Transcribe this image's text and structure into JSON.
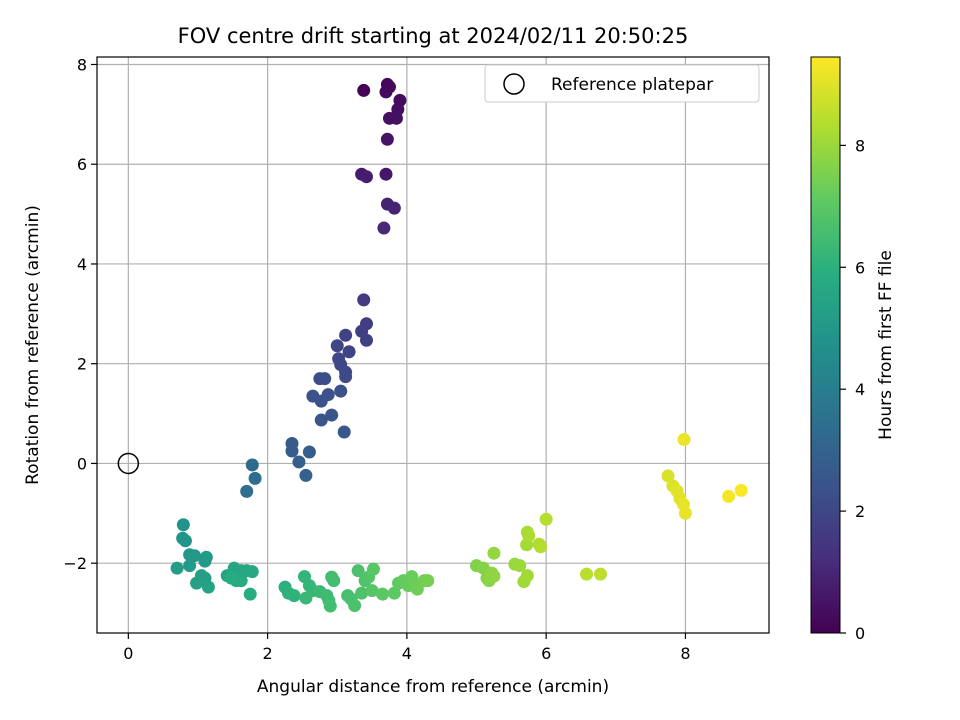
{
  "chart_data": {
    "type": "scatter",
    "title": "FOV centre drift starting at 2024/02/11 20:50:25",
    "xlabel": "Angular distance from reference (arcmin)",
    "ylabel": "Rotation from reference (arcmin)",
    "xlim": [
      -0.45,
      9.2
    ],
    "ylim": [
      -3.4,
      8.15
    ],
    "xticks": [
      0,
      2,
      4,
      6,
      8
    ],
    "yticks": [
      -2,
      0,
      2,
      4,
      6,
      8
    ],
    "xtick_labels": [
      "0",
      "2",
      "4",
      "6",
      "8"
    ],
    "ytick_labels": [
      "−2",
      "0",
      "2",
      "4",
      "6",
      "8"
    ],
    "grid": true,
    "legend": {
      "position": "top-right",
      "entries": [
        "Reference platepar"
      ]
    },
    "reference_point": {
      "label": "Reference platepar",
      "x": 0,
      "y": 0
    },
    "colorbar": {
      "label": "Hours from first FF file",
      "colormap": "viridis",
      "range": [
        0,
        9.45
      ],
      "ticks": [
        0,
        2,
        4,
        6,
        8
      ],
      "tick_labels": [
        "0",
        "2",
        "4",
        "6",
        "8"
      ]
    },
    "points": [
      {
        "x": 3.38,
        "y": 7.48,
        "c": 0.1
      },
      {
        "x": 3.72,
        "y": 7.6,
        "c": 0.15
      },
      {
        "x": 3.75,
        "y": 7.55,
        "c": 0.2
      },
      {
        "x": 3.7,
        "y": 7.45,
        "c": 0.25
      },
      {
        "x": 3.9,
        "y": 7.28,
        "c": 0.3
      },
      {
        "x": 3.87,
        "y": 7.1,
        "c": 0.35
      },
      {
        "x": 3.75,
        "y": 6.92,
        "c": 0.4
      },
      {
        "x": 3.85,
        "y": 6.92,
        "c": 0.45
      },
      {
        "x": 3.72,
        "y": 6.5,
        "c": 0.5
      },
      {
        "x": 3.7,
        "y": 5.8,
        "c": 0.6
      },
      {
        "x": 3.35,
        "y": 5.8,
        "c": 0.7
      },
      {
        "x": 3.42,
        "y": 5.75,
        "c": 0.75
      },
      {
        "x": 3.72,
        "y": 5.2,
        "c": 0.9
      },
      {
        "x": 3.82,
        "y": 5.12,
        "c": 0.95
      },
      {
        "x": 3.67,
        "y": 4.72,
        "c": 1.05
      },
      {
        "x": 3.38,
        "y": 3.28,
        "c": 1.6
      },
      {
        "x": 3.42,
        "y": 2.8,
        "c": 1.7
      },
      {
        "x": 3.35,
        "y": 2.65,
        "c": 1.75
      },
      {
        "x": 3.42,
        "y": 2.47,
        "c": 1.8
      },
      {
        "x": 3.12,
        "y": 2.57,
        "c": 1.85
      },
      {
        "x": 3.17,
        "y": 2.24,
        "c": 1.9
      },
      {
        "x": 3.0,
        "y": 2.36,
        "c": 1.95
      },
      {
        "x": 3.02,
        "y": 2.1,
        "c": 2.0
      },
      {
        "x": 3.05,
        "y": 1.98,
        "c": 2.05
      },
      {
        "x": 3.12,
        "y": 1.83,
        "c": 2.1
      },
      {
        "x": 3.12,
        "y": 1.74,
        "c": 2.15
      },
      {
        "x": 2.75,
        "y": 1.7,
        "c": 2.2
      },
      {
        "x": 2.82,
        "y": 1.7,
        "c": 2.25
      },
      {
        "x": 3.05,
        "y": 1.45,
        "c": 2.3
      },
      {
        "x": 2.87,
        "y": 1.38,
        "c": 2.35
      },
      {
        "x": 2.65,
        "y": 1.35,
        "c": 2.4
      },
      {
        "x": 2.77,
        "y": 1.25,
        "c": 2.45
      },
      {
        "x": 2.92,
        "y": 0.97,
        "c": 2.5
      },
      {
        "x": 2.77,
        "y": 0.87,
        "c": 2.55
      },
      {
        "x": 3.1,
        "y": 0.63,
        "c": 2.6
      },
      {
        "x": 2.35,
        "y": 0.4,
        "c": 2.7
      },
      {
        "x": 2.35,
        "y": 0.25,
        "c": 2.75
      },
      {
        "x": 2.6,
        "y": 0.23,
        "c": 2.8
      },
      {
        "x": 2.45,
        "y": 0.03,
        "c": 2.85
      },
      {
        "x": 2.55,
        "y": -0.24,
        "c": 2.95
      },
      {
        "x": 1.78,
        "y": -0.03,
        "c": 3.3
      },
      {
        "x": 1.82,
        "y": -0.3,
        "c": 3.35
      },
      {
        "x": 1.7,
        "y": -0.56,
        "c": 3.4
      },
      {
        "x": 0.79,
        "y": -1.23,
        "c": 4.8
      },
      {
        "x": 0.78,
        "y": -1.5,
        "c": 4.85
      },
      {
        "x": 0.82,
        "y": -1.55,
        "c": 4.9
      },
      {
        "x": 0.88,
        "y": -1.83,
        "c": 4.95
      },
      {
        "x": 0.95,
        "y": -1.85,
        "c": 5.0
      },
      {
        "x": 1.12,
        "y": -1.88,
        "c": 5.05
      },
      {
        "x": 1.1,
        "y": -1.96,
        "c": 5.1
      },
      {
        "x": 0.88,
        "y": -2.05,
        "c": 5.15
      },
      {
        "x": 0.7,
        "y": -2.1,
        "c": 5.2
      },
      {
        "x": 1.05,
        "y": -2.25,
        "c": 5.25
      },
      {
        "x": 1.1,
        "y": -2.3,
        "c": 5.3
      },
      {
        "x": 0.98,
        "y": -2.4,
        "c": 5.35
      },
      {
        "x": 1.15,
        "y": -2.48,
        "c": 5.4
      },
      {
        "x": 1.42,
        "y": -2.25,
        "c": 5.45
      },
      {
        "x": 1.52,
        "y": -2.1,
        "c": 5.5
      },
      {
        "x": 1.62,
        "y": -2.15,
        "c": 5.55
      },
      {
        "x": 1.7,
        "y": -2.15,
        "c": 5.6
      },
      {
        "x": 1.78,
        "y": -2.17,
        "c": 5.65
      },
      {
        "x": 1.55,
        "y": -2.35,
        "c": 5.7
      },
      {
        "x": 1.62,
        "y": -2.35,
        "c": 5.75
      },
      {
        "x": 1.48,
        "y": -2.3,
        "c": 5.8
      },
      {
        "x": 1.75,
        "y": -2.62,
        "c": 5.85
      },
      {
        "x": 2.25,
        "y": -2.48,
        "c": 6.0
      },
      {
        "x": 2.3,
        "y": -2.6,
        "c": 6.05
      },
      {
        "x": 2.38,
        "y": -2.65,
        "c": 6.1
      },
      {
        "x": 2.53,
        "y": -2.27,
        "c": 6.15
      },
      {
        "x": 2.6,
        "y": -2.45,
        "c": 6.2
      },
      {
        "x": 2.65,
        "y": -2.55,
        "c": 6.25
      },
      {
        "x": 2.55,
        "y": -2.7,
        "c": 6.3
      },
      {
        "x": 2.75,
        "y": -2.57,
        "c": 6.35
      },
      {
        "x": 2.85,
        "y": -2.65,
        "c": 6.4
      },
      {
        "x": 2.88,
        "y": -2.75,
        "c": 6.45
      },
      {
        "x": 2.92,
        "y": -2.28,
        "c": 6.5
      },
      {
        "x": 2.95,
        "y": -2.35,
        "c": 6.55
      },
      {
        "x": 2.9,
        "y": -2.86,
        "c": 6.55
      },
      {
        "x": 3.15,
        "y": -2.65,
        "c": 6.6
      },
      {
        "x": 3.2,
        "y": -2.72,
        "c": 6.65
      },
      {
        "x": 3.25,
        "y": -2.85,
        "c": 6.7
      },
      {
        "x": 3.3,
        "y": -2.15,
        "c": 6.7
      },
      {
        "x": 3.35,
        "y": -2.6,
        "c": 6.75
      },
      {
        "x": 3.4,
        "y": -2.35,
        "c": 6.8
      },
      {
        "x": 3.45,
        "y": -2.28,
        "c": 6.85
      },
      {
        "x": 3.5,
        "y": -2.55,
        "c": 6.9
      },
      {
        "x": 3.52,
        "y": -2.12,
        "c": 6.95
      },
      {
        "x": 3.65,
        "y": -2.62,
        "c": 7.0
      },
      {
        "x": 3.82,
        "y": -2.6,
        "c": 7.05
      },
      {
        "x": 3.88,
        "y": -2.4,
        "c": 7.1
      },
      {
        "x": 3.95,
        "y": -2.35,
        "c": 7.15
      },
      {
        "x": 4.02,
        "y": -2.45,
        "c": 7.2
      },
      {
        "x": 4.07,
        "y": -2.27,
        "c": 7.25
      },
      {
        "x": 4.12,
        "y": -2.4,
        "c": 7.3
      },
      {
        "x": 4.15,
        "y": -2.52,
        "c": 7.35
      },
      {
        "x": 4.25,
        "y": -2.35,
        "c": 7.4
      },
      {
        "x": 4.3,
        "y": -2.35,
        "c": 7.45
      },
      {
        "x": 5.0,
        "y": -2.05,
        "c": 7.6
      },
      {
        "x": 5.1,
        "y": -2.1,
        "c": 7.65
      },
      {
        "x": 5.15,
        "y": -2.3,
        "c": 7.7
      },
      {
        "x": 5.18,
        "y": -2.35,
        "c": 7.75
      },
      {
        "x": 5.22,
        "y": -2.2,
        "c": 7.8
      },
      {
        "x": 5.25,
        "y": -2.26,
        "c": 7.85
      },
      {
        "x": 5.25,
        "y": -1.8,
        "c": 7.9
      },
      {
        "x": 5.55,
        "y": -2.02,
        "c": 7.95
      },
      {
        "x": 5.62,
        "y": -2.05,
        "c": 8.0
      },
      {
        "x": 5.68,
        "y": -2.37,
        "c": 8.05
      },
      {
        "x": 5.73,
        "y": -2.25,
        "c": 8.1
      },
      {
        "x": 5.72,
        "y": -1.63,
        "c": 8.15
      },
      {
        "x": 5.73,
        "y": -1.38,
        "c": 8.2
      },
      {
        "x": 5.75,
        "y": -1.45,
        "c": 8.25
      },
      {
        "x": 5.9,
        "y": -1.62,
        "c": 8.3
      },
      {
        "x": 5.92,
        "y": -1.67,
        "c": 8.35
      },
      {
        "x": 6.0,
        "y": -1.12,
        "c": 8.4
      },
      {
        "x": 6.58,
        "y": -2.22,
        "c": 8.45
      },
      {
        "x": 6.78,
        "y": -2.22,
        "c": 8.5
      },
      {
        "x": 7.75,
        "y": -0.25,
        "c": 8.9
      },
      {
        "x": 7.82,
        "y": -0.45,
        "c": 8.95
      },
      {
        "x": 7.88,
        "y": -0.55,
        "c": 9.0
      },
      {
        "x": 7.92,
        "y": -0.7,
        "c": 9.05
      },
      {
        "x": 7.97,
        "y": -0.82,
        "c": 9.1
      },
      {
        "x": 8.0,
        "y": -1.0,
        "c": 9.15
      },
      {
        "x": 7.98,
        "y": 0.48,
        "c": 9.2
      },
      {
        "x": 8.62,
        "y": -0.66,
        "c": 9.3
      },
      {
        "x": 8.8,
        "y": -0.54,
        "c": 9.4
      }
    ]
  }
}
